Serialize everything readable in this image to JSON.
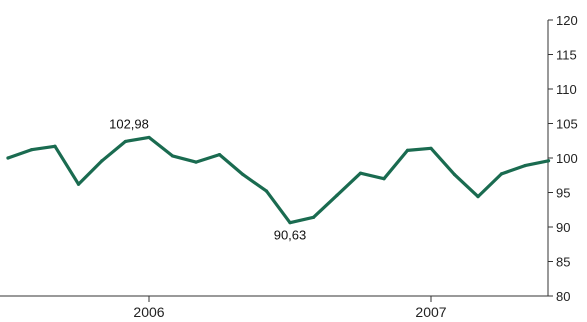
{
  "chart_data": {
    "type": "line",
    "title": "",
    "xlabel": "",
    "ylabel": "",
    "x_tick_labels": [
      "2006",
      "2007"
    ],
    "y_axis_position": "right",
    "ylim": [
      80,
      120
    ],
    "y_ticks": [
      80,
      85,
      90,
      95,
      100,
      105,
      110,
      115,
      120
    ],
    "grid": false,
    "legend": "none",
    "line_color": "#1a6b50",
    "series": [
      {
        "values": [
          100.0,
          101.2,
          101.7,
          96.2,
          99.6,
          102.4,
          102.98,
          100.3,
          99.4,
          100.5,
          97.6,
          95.2,
          90.63,
          91.4,
          94.6,
          97.8,
          97.0,
          101.1,
          101.4,
          97.6,
          94.4,
          97.7,
          98.9,
          99.6
        ]
      }
    ],
    "annotations": [
      {
        "index": 6,
        "label": "102,98",
        "position": "above"
      },
      {
        "index": 12,
        "label": "90,63",
        "position": "below"
      }
    ]
  }
}
